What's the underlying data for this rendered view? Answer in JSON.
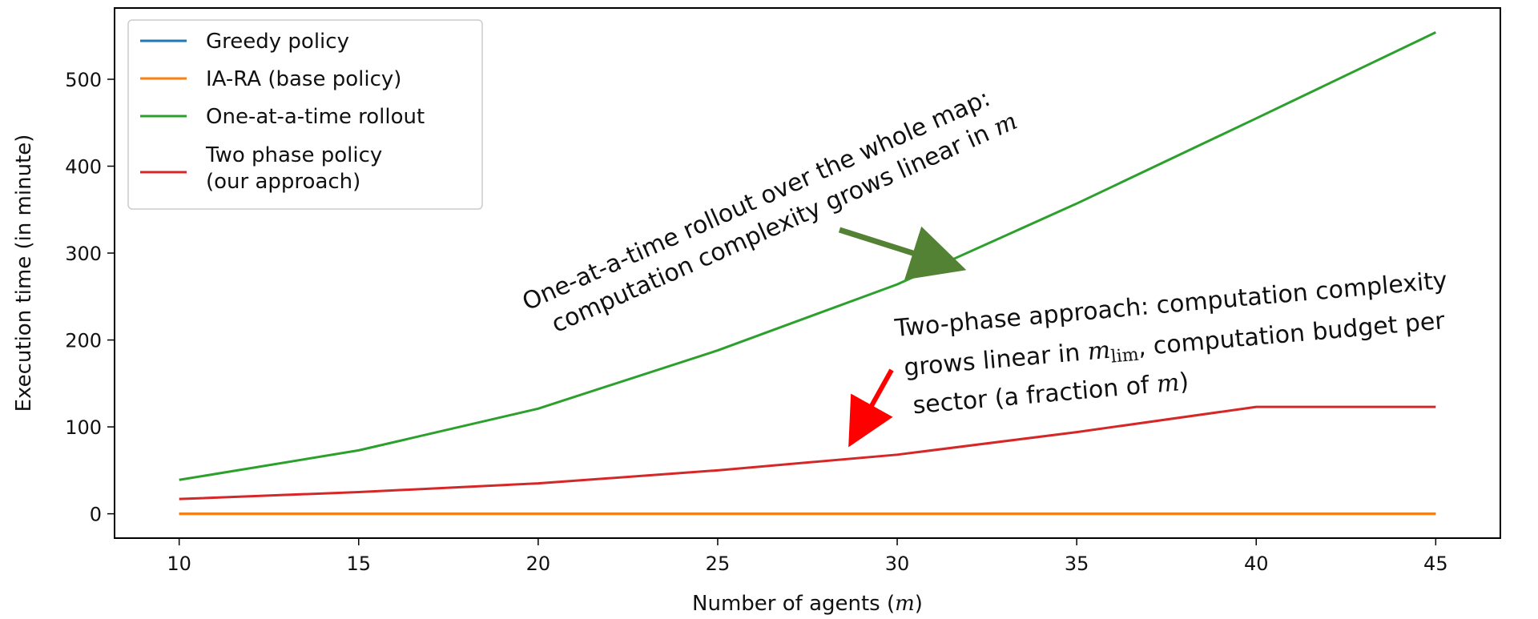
{
  "chart_data": {
    "type": "line",
    "title": "",
    "xlabel": "Number of agents (",
    "xlabel_math": "m",
    "xlabel_suffix": ")",
    "ylabel": "Execution time (in minute)",
    "x": [
      10,
      15,
      20,
      25,
      30,
      35,
      40,
      45
    ],
    "xticks": [
      10,
      15,
      20,
      25,
      30,
      35,
      40,
      45
    ],
    "yticks": [
      0,
      100,
      200,
      300,
      400,
      500
    ],
    "xlim": [
      8.2,
      46.8
    ],
    "ylim": [
      -28,
      582
    ],
    "grid": false,
    "legend_position": "top-left",
    "series": [
      {
        "name": "Greedy policy",
        "color": "#1f77b4",
        "values": [
          0,
          0,
          0,
          0,
          0,
          0,
          0,
          0
        ]
      },
      {
        "name": "IA-RA (base policy)",
        "color": "#ff7f0e",
        "values": [
          0,
          0,
          0,
          0,
          0,
          0,
          0,
          0
        ]
      },
      {
        "name": "One-at-a-time rollout",
        "color": "#2ca02c",
        "values": [
          39,
          73,
          121,
          188,
          264,
          357,
          455,
          554
        ]
      },
      {
        "name": "Two phase policy\n(our approach)",
        "color": "#d62728",
        "values": [
          17,
          25,
          35,
          50,
          68,
          94,
          123,
          123
        ]
      }
    ],
    "annotations": [
      {
        "lines": [
          "One-at-a-time rollout over the whole map:",
          "computation complexity grows linear in"
        ],
        "math": "m",
        "arrow_color": "#548235"
      },
      {
        "line1": "Two-phase approach: computation complexity",
        "line2_prefix": "grows linear in",
        "line2_math": "m",
        "line2_sub": "lim",
        "line2_suffix": ", computation budget per",
        "line3_prefix": "sector (a fraction of",
        "line3_math": "m",
        "line3_suffix": ")",
        "arrow_color": "#ff0000"
      }
    ]
  }
}
